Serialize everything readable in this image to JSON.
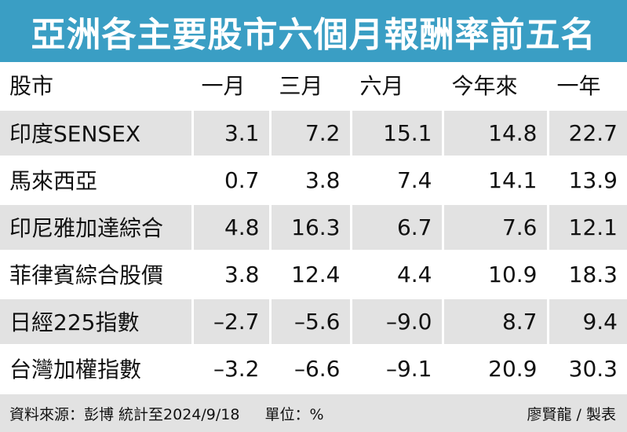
{
  "title": "亞洲各主要股市六個月報酬率前五名",
  "headers": [
    "股市",
    "一月",
    "三月",
    "六月",
    "今年來",
    "一年"
  ],
  "rows": [
    {
      "name": "印度SENSEX",
      "values": [
        "3.1",
        "7.2",
        "15.1",
        "14.8",
        "22.7"
      ]
    },
    {
      "name": "馬來西亞",
      "values": [
        "0.7",
        "3.8",
        "7.4",
        "14.1",
        "13.9"
      ]
    },
    {
      "name": "印尼雅加達綜合",
      "values": [
        "4.8",
        "16.3",
        "6.7",
        "7.6",
        "12.1"
      ]
    },
    {
      "name": "菲律賓綜合股價",
      "values": [
        "3.8",
        "12.4",
        "4.4",
        "10.9",
        "18.3"
      ]
    },
    {
      "name": "日經225指數",
      "values": [
        "–2.7",
        "–5.6",
        "–9.0",
        "8.7",
        "9.4"
      ]
    },
    {
      "name": "台灣加權指數",
      "values": [
        "–3.2",
        "–6.6",
        "–9.1",
        "20.9",
        "30.3"
      ]
    }
  ],
  "footer": {
    "source": "資料來源：彭博 統計至2024/9/18",
    "unit": "單位：%",
    "credit": "廖賢龍 / 製表"
  },
  "colors": {
    "title_bg": "#3a9ec4",
    "title_text": "#ffffff",
    "shaded_row": "#e2e2e2"
  }
}
